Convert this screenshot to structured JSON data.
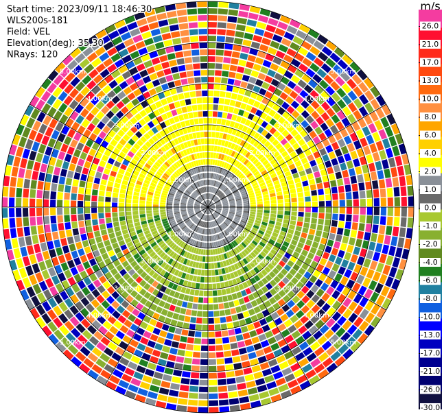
{
  "header": {
    "lines": [
      "Start time: 2023/09/11 18:46:30",
      "WLS200s-181",
      "Field: VEL",
      "Elevation(deg): 35.30",
      "NRays: 120"
    ]
  },
  "chart_data": {
    "type": "ppi",
    "range_labels": [
      "1.00km",
      "2.00km",
      "3.00km",
      "4.00km",
      "5.00km"
    ],
    "colorbar": {
      "unit": "m/s",
      "ticks": [
        {
          "value": 26,
          "label": "26.0"
        },
        {
          "value": 21,
          "label": "21.0"
        },
        {
          "value": 17,
          "label": "17.0"
        },
        {
          "value": 13,
          "label": "13.0"
        },
        {
          "value": 10,
          "label": "10.0"
        },
        {
          "value": 8,
          "label": "8.0"
        },
        {
          "value": 6,
          "label": "6.0"
        },
        {
          "value": 4,
          "label": "4.0"
        },
        {
          "value": 2,
          "label": "2.0"
        },
        {
          "value": 1,
          "label": "1.0"
        },
        {
          "value": 0,
          "label": "0.0"
        },
        {
          "value": -1,
          "label": "-1.0"
        },
        {
          "value": -2,
          "label": "-2.0"
        },
        {
          "value": -4,
          "label": "-4.0"
        },
        {
          "value": -6,
          "label": "-6.0"
        },
        {
          "value": -8,
          "label": "-8.0"
        },
        {
          "value": -10,
          "label": "-10.0"
        },
        {
          "value": -13,
          "label": "-13.0"
        },
        {
          "value": -17,
          "label": "-17.0"
        },
        {
          "value": -21,
          "label": "-21.0"
        },
        {
          "value": -26,
          "label": "-26.0"
        },
        {
          "value": -30,
          "label": "-30.0"
        }
      ],
      "colors": [
        "#f43ca0",
        "#ff1030",
        "#ff2a1a",
        "#ff4a10",
        "#ff6a10",
        "#ff9040",
        "#ffa500",
        "#ffd000",
        "#ffff00",
        "#8a9098",
        "#6a6a6a",
        "#a8c830",
        "#88b030",
        "#608a20",
        "#208020",
        "#2080a0",
        "#1060e0",
        "#0000ff",
        "#0000c0",
        "#000090",
        "#000070",
        "#101040"
      ]
    }
  }
}
